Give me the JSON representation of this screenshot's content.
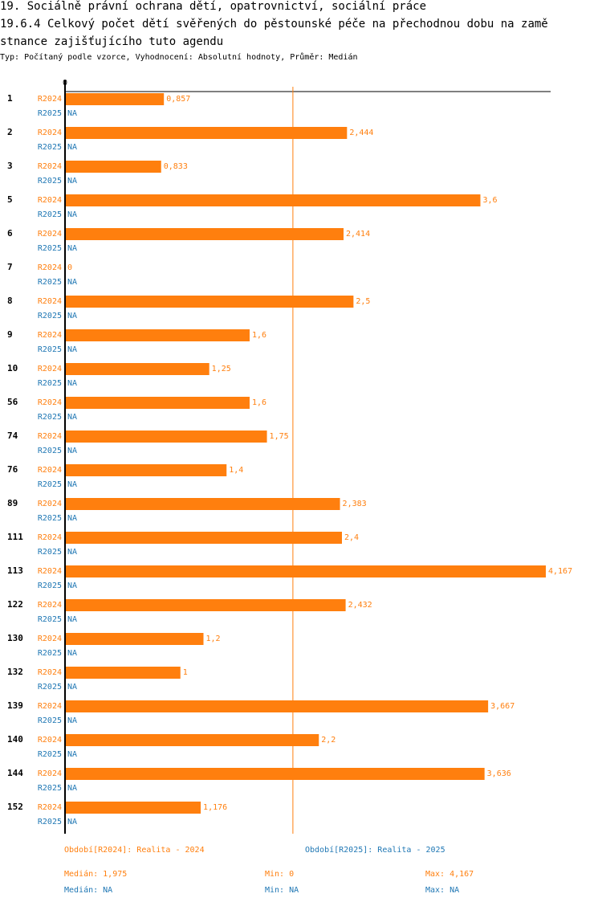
{
  "header": {
    "title_line1": "19. Sociálně právní ochrana dětí, opatrovnictví, sociální práce",
    "title_line2": "19.6.4 Celkový počet dětí svěřených do pěstounské péče na přechodnou dobu na zamě",
    "title_line3": "stnance zajišťujícího tuto agendu",
    "subtitle": "Typ: Počítaný podle vzorce, Vyhodnocení: Absolutní hodnoty, Průměr: Medián"
  },
  "colors": {
    "r2024": "#ff7f0e",
    "r2025": "#1f77b4",
    "axis": "#000000",
    "median_line": "#ff7f0e"
  },
  "chart_data": {
    "type": "bar",
    "orientation": "horizontal",
    "axis_zero_label": "0",
    "xlim": [
      0,
      4.167
    ],
    "categories": [
      "1",
      "2",
      "3",
      "5",
      "6",
      "7",
      "8",
      "9",
      "10",
      "56",
      "74",
      "76",
      "89",
      "111",
      "113",
      "122",
      "130",
      "132",
      "139",
      "140",
      "144",
      "152"
    ],
    "series": [
      {
        "name": "R2024",
        "values": [
          0.857,
          2.444,
          0.833,
          3.6,
          2.414,
          0,
          2.5,
          1.6,
          1.25,
          1.6,
          1.75,
          1.4,
          2.383,
          2.4,
          4.167,
          2.432,
          1.2,
          1,
          3.667,
          2.2,
          3.636,
          1.176
        ],
        "labels": [
          "0,857",
          "2,444",
          "0,833",
          "3,6",
          "2,414",
          "0",
          "2,5",
          "1,6",
          "1,25",
          "1,6",
          "1,75",
          "1,4",
          "2,383",
          "2,4",
          "4,167",
          "2,432",
          "1,2",
          "1",
          "3,667",
          "2,2",
          "3,636",
          "1,176"
        ]
      },
      {
        "name": "R2025",
        "values": null,
        "label": "NA"
      }
    ],
    "median_line_value": 1.975
  },
  "footer": {
    "legend_2024": "Období[R2024]: Realita - 2024",
    "legend_2025": "Období[R2025]: Realita - 2025",
    "median_2024": "Medián: 1,975",
    "min_2024": "Min: 0",
    "max_2024": "Max: 4,167",
    "median_2025": "Medián: NA",
    "min_2025": "Min: NA",
    "max_2025": "Max: NA"
  }
}
